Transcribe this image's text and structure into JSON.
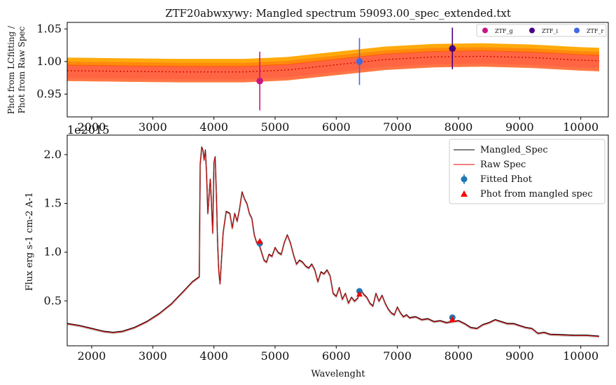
{
  "chart_data": [
    {
      "type": "line",
      "title": "ZTF20abwxywy: Mangled spectrum 59093.00_spec_extended.txt",
      "ylabel_lines": [
        "Phot from LCfitting /",
        "Phot from Raw Spec"
      ],
      "xlabel": "",
      "x_offset_label": "1e2015",
      "xlim": [
        1600,
        10450
      ],
      "ylim": [
        0.915,
        1.06
      ],
      "xticks": [
        2000,
        3000,
        4000,
        5000,
        6000,
        7000,
        8000,
        9000,
        10000
      ],
      "yticks": [
        0.95,
        1.0,
        1.05
      ],
      "ytick_labels": [
        "0.95",
        "1.00",
        "1.05"
      ],
      "band_colors": [
        "#ffa500",
        "#ff7f0e",
        "#ff4500",
        "#ff6a5a"
      ],
      "model_x": [
        1600,
        2500,
        3500,
        4500,
        5200,
        6000,
        6800,
        7600,
        8400,
        9200,
        10000,
        10300
      ],
      "model_y": [
        0.986,
        0.985,
        0.984,
        0.984,
        0.987,
        0.995,
        1.003,
        1.007,
        1.008,
        1.006,
        1.002,
        1.001
      ],
      "model_line_color": "#cc0000",
      "points": [
        {
          "name": "ZTF_g",
          "x": 4750,
          "y": 0.97,
          "yerr": 0.045,
          "color": "#c71585"
        },
        {
          "name": "ZTF_i",
          "x": 7900,
          "y": 1.02,
          "yerr": 0.032,
          "color": "#4b0082"
        },
        {
          "name": "ZTF_r",
          "x": 6380,
          "y": 1.0,
          "yerr": 0.036,
          "color": "#4169e1"
        }
      ],
      "legend": {
        "placement": "top-right",
        "entries": [
          "ZTF_g",
          "ZTF_i",
          "ZTF_r"
        ]
      }
    },
    {
      "type": "line",
      "title": "",
      "xlabel": "Wavelenght",
      "ylabel": "Flux erg s-1 cm-2 A-1",
      "xlim": [
        1600,
        10450
      ],
      "ylim": [
        0.04,
        2.2
      ],
      "xticks": [
        2000,
        3000,
        4000,
        5000,
        6000,
        7000,
        8000,
        9000,
        10000
      ],
      "yticks": [
        0.5,
        1.0,
        1.5,
        2.0
      ],
      "ytick_labels": [
        "0.5",
        "1.0",
        "1.5",
        "2.0"
      ],
      "series": [
        {
          "name": "Mangled_Spec",
          "color": "#000000",
          "x": [
            1600,
            1800,
            2000,
            2200,
            2350,
            2500,
            2700,
            2900,
            3100,
            3300,
            3500,
            3650,
            3760,
            3775,
            3800,
            3820,
            3840,
            3860,
            3880,
            3900,
            3920,
            3940,
            3960,
            3980,
            4000,
            4020,
            4040,
            4060,
            4080,
            4100,
            4150,
            4200,
            4260,
            4300,
            4340,
            4380,
            4420,
            4460,
            4500,
            4540,
            4580,
            4620,
            4660,
            4700,
            4740,
            4780,
            4820,
            4860,
            4900,
            4950,
            5000,
            5050,
            5100,
            5150,
            5200,
            5250,
            5300,
            5350,
            5400,
            5450,
            5500,
            5550,
            5600,
            5650,
            5700,
            5750,
            5800,
            5850,
            5900,
            5950,
            6000,
            6050,
            6100,
            6150,
            6200,
            6250,
            6300,
            6350,
            6400,
            6450,
            6500,
            6550,
            6600,
            6650,
            6700,
            6750,
            6800,
            6850,
            6900,
            6950,
            7000,
            7050,
            7100,
            7150,
            7200,
            7300,
            7400,
            7500,
            7600,
            7700,
            7800,
            7900,
            8000,
            8100,
            8200,
            8300,
            8400,
            8500,
            8600,
            8700,
            8800,
            8900,
            9000,
            9100,
            9200,
            9300,
            9400,
            9500,
            9700,
            9900,
            10100,
            10300
          ],
          "y": [
            0.27,
            0.25,
            0.22,
            0.19,
            0.18,
            0.19,
            0.23,
            0.29,
            0.37,
            0.47,
            0.6,
            0.7,
            0.75,
            1.9,
            2.08,
            2.05,
            1.95,
            2.05,
            1.8,
            1.4,
            1.58,
            1.75,
            1.5,
            1.2,
            1.92,
            1.98,
            1.6,
            1.1,
            0.8,
            0.68,
            1.2,
            1.42,
            1.4,
            1.25,
            1.4,
            1.32,
            1.45,
            1.62,
            1.55,
            1.5,
            1.4,
            1.35,
            1.18,
            1.1,
            1.08,
            1.0,
            0.92,
            0.9,
            0.98,
            0.96,
            1.05,
            1.0,
            0.98,
            1.1,
            1.18,
            1.1,
            0.98,
            0.88,
            0.92,
            0.9,
            0.86,
            0.84,
            0.88,
            0.82,
            0.7,
            0.8,
            0.78,
            0.82,
            0.76,
            0.58,
            0.55,
            0.64,
            0.52,
            0.58,
            0.48,
            0.54,
            0.5,
            0.53,
            0.62,
            0.57,
            0.54,
            0.48,
            0.45,
            0.58,
            0.5,
            0.56,
            0.48,
            0.42,
            0.38,
            0.36,
            0.44,
            0.38,
            0.34,
            0.36,
            0.33,
            0.34,
            0.31,
            0.32,
            0.29,
            0.3,
            0.28,
            0.29,
            0.3,
            0.27,
            0.23,
            0.22,
            0.26,
            0.28,
            0.31,
            0.29,
            0.27,
            0.27,
            0.25,
            0.23,
            0.22,
            0.17,
            0.18,
            0.16,
            0.155,
            0.15,
            0.15,
            0.14
          ]
        },
        {
          "name": "Raw Spec",
          "color": "#e00000"
        }
      ],
      "markers": [
        {
          "name": "Fitted Phot",
          "color": "#1f77b4",
          "shape": "circle",
          "points": [
            {
              "x": 4750,
              "y": 1.09,
              "yerr": 0.03
            },
            {
              "x": 6380,
              "y": 0.6,
              "yerr": 0.02
            },
            {
              "x": 7900,
              "y": 0.33,
              "yerr": 0.015
            }
          ]
        },
        {
          "name": "Phot from mangled spec",
          "color": "#ff0000",
          "shape": "triangle",
          "points": [
            {
              "x": 4750,
              "y": 1.11
            },
            {
              "x": 6380,
              "y": 0.57
            },
            {
              "x": 7900,
              "y": 0.31
            }
          ]
        }
      ],
      "legend": {
        "placement": "top-right",
        "entries": [
          "Mangled_Spec",
          "Raw Spec",
          "Fitted Phot",
          "Phot from mangled spec"
        ]
      }
    }
  ]
}
